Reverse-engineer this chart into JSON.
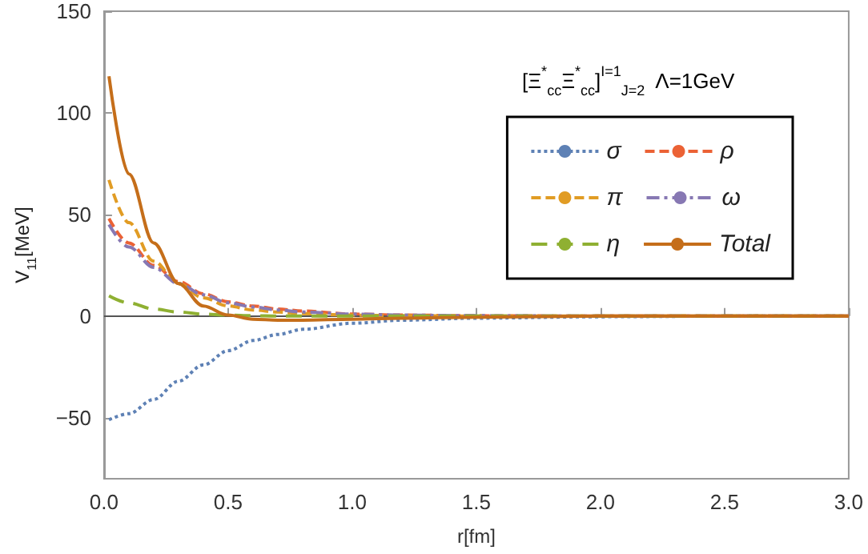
{
  "chart_data": {
    "type": "line",
    "xlabel": "r[fm]",
    "ylabel": "V$_{11}$[MeV]",
    "annotations": [
      "[Ξ$^{*}$$_{cc}$Ξ$^{*}$$_{cc}$]$^{I=1}$$_{J=2}$  Λ=1GeV"
    ],
    "x": [
      0.02,
      0.1,
      0.2,
      0.3,
      0.4,
      0.5,
      0.6,
      0.7,
      0.8,
      1.0,
      1.2,
      1.5,
      2.0,
      2.5,
      3.0
    ],
    "series": [
      {
        "name": "σ",
        "color": "#5e81b5",
        "line_style": "dotted",
        "values": [
          -51,
          -48,
          -41,
          -32,
          -24,
          -17,
          -12,
          -9,
          -6.5,
          -3.5,
          -2,
          -1,
          -0.3,
          0,
          0
        ]
      },
      {
        "name": "ρ",
        "color": "#eb6235",
        "line_style": "dashed",
        "values": [
          48,
          36,
          25,
          17,
          11,
          7,
          5,
          3.5,
          2.5,
          1,
          0.5,
          0.2,
          0,
          0,
          0
        ]
      },
      {
        "name": "π",
        "color": "#e19c24",
        "line_style": "dashed",
        "values": [
          67,
          46,
          27,
          16,
          9,
          5,
          3,
          2,
          1.2,
          0.5,
          0.2,
          0,
          0,
          0,
          0
        ]
      },
      {
        "name": "ω",
        "color": "#8778b3",
        "line_style": "dashdot",
        "values": [
          45,
          34,
          24,
          16,
          10.5,
          6.5,
          4.5,
          3,
          2,
          1,
          0.5,
          0.2,
          0,
          0,
          0
        ]
      },
      {
        "name": "η",
        "color": "#8fb032",
        "line_style": "longdash",
        "values": [
          10,
          6.5,
          3.5,
          2,
          1,
          0.5,
          0.2,
          0,
          0,
          0,
          0,
          0,
          0,
          0,
          0
        ]
      },
      {
        "name": "Total",
        "color": "#c56e1a",
        "line_style": "solid",
        "values": [
          118,
          70,
          36,
          16,
          5,
          0.5,
          -1.5,
          -2,
          -2,
          -1.5,
          -1,
          -0.5,
          0,
          0,
          0
        ]
      }
    ],
    "xlim": [
      0,
      3
    ],
    "xticks": [
      {
        "value": 0,
        "label": "0.0"
      },
      {
        "value": 0.5,
        "label": "0.5"
      },
      {
        "value": 1,
        "label": "1.0"
      },
      {
        "value": 1.5,
        "label": "1.5"
      },
      {
        "value": 2,
        "label": "2.0"
      },
      {
        "value": 2.5,
        "label": "2.5"
      },
      {
        "value": 3,
        "label": "3.0"
      }
    ],
    "ylim": [
      -80,
      150
    ],
    "yticks": [
      -50,
      0,
      50,
      100,
      150
    ],
    "ref_lines": [
      {
        "axis": "y",
        "value": 0,
        "color": "#555555"
      }
    ],
    "grid": false,
    "legend": "top right",
    "marker": "none"
  }
}
